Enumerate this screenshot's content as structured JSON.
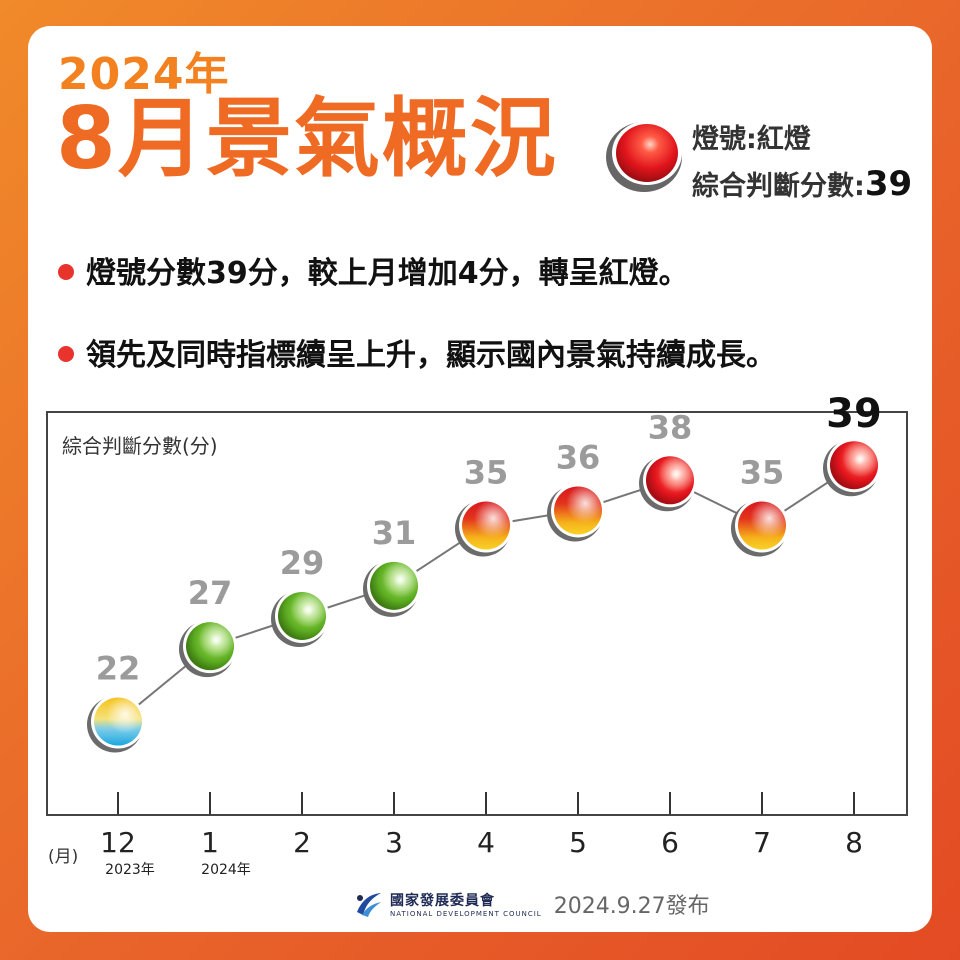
{
  "header": {
    "year": "2024年",
    "title": "8月景氣概況",
    "signal_label": "燈號:紅燈",
    "score_label": "綜合判斷分數:",
    "score_value": "39"
  },
  "bullets": [
    "燈號分數39分，較上月增加4分，轉呈紅燈。",
    "領先及同時指標續呈上升，顯示國內景氣持續成長。"
  ],
  "chart_data": {
    "type": "line",
    "ylabel": "綜合判斷分數(分)",
    "xlabel": "(月)",
    "categories": [
      "12",
      "1",
      "2",
      "3",
      "4",
      "5",
      "6",
      "7",
      "8"
    ],
    "year_labels": [
      {
        "index": 0,
        "text": "2023年"
      },
      {
        "index": 1,
        "text": "2024年"
      }
    ],
    "values": [
      22,
      27,
      29,
      31,
      35,
      36,
      38,
      35,
      39
    ],
    "light_colors": [
      "yellow-blue",
      "green",
      "green",
      "green",
      "yellow-red",
      "yellow-red",
      "red",
      "yellow-red",
      "red"
    ],
    "ylim": [
      16,
      42
    ],
    "grid": false,
    "colors": {
      "red": "#e8262a",
      "green": "#69b92b",
      "yellow": "#f6c21a",
      "blue": "#1ba7e0",
      "line": "#777777"
    }
  },
  "footer": {
    "org_cn": "國家發展委員會",
    "org_en": "NATIONAL DEVELOPMENT COUNCIL",
    "published": "2024.9.27發布"
  }
}
